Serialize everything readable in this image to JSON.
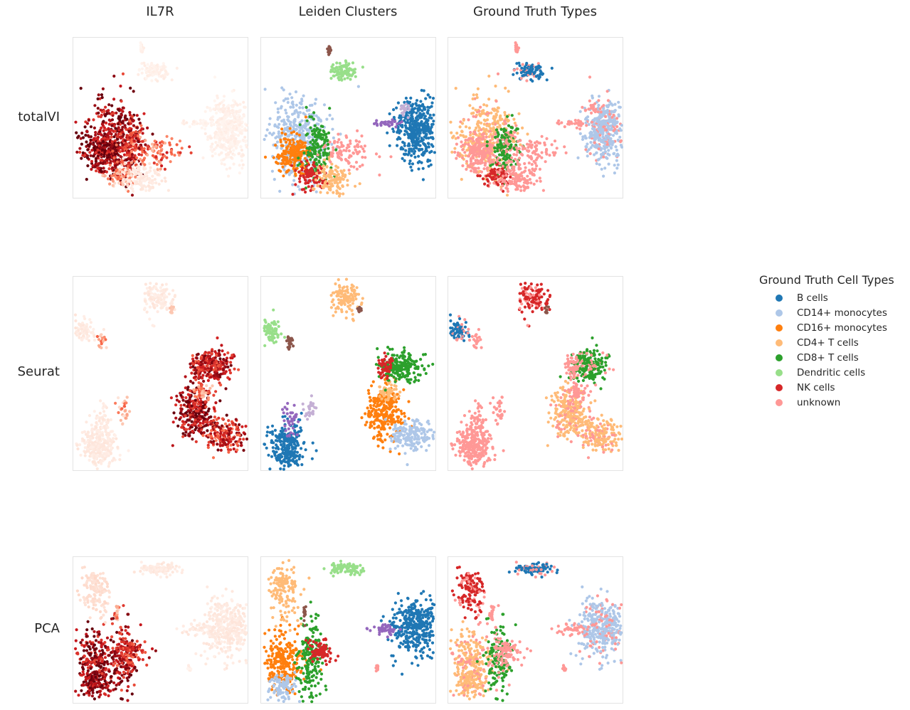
{
  "columns": [
    "IL7R",
    "Leiden Clusters",
    "Ground Truth Types"
  ],
  "rows": [
    "totalVI",
    "Seurat",
    "PCA"
  ],
  "legend": {
    "title": "Ground Truth Cell Types",
    "items": [
      {
        "label": "B cells",
        "color": "#1f77b4"
      },
      {
        "label": "CD14+ monocytes",
        "color": "#aec7e8"
      },
      {
        "label": "CD16+ monocytes",
        "color": "#ff7f0e"
      },
      {
        "label": "CD4+ T cells",
        "color": "#ffbb78"
      },
      {
        "label": "CD8+ T cells",
        "color": "#2ca02c"
      },
      {
        "label": "Dendritic cells",
        "color": "#98df8a"
      },
      {
        "label": "NK cells",
        "color": "#d62728"
      },
      {
        "label": "unknown",
        "color": "#ff9896"
      }
    ]
  },
  "chart_data": {
    "type": "scatter",
    "colormap": "Reds",
    "extra_cluster_colors": [
      "#9467bd",
      "#c5b0d5",
      "#8c564b"
    ],
    "unknown_color": "#ff9896"
  }
}
